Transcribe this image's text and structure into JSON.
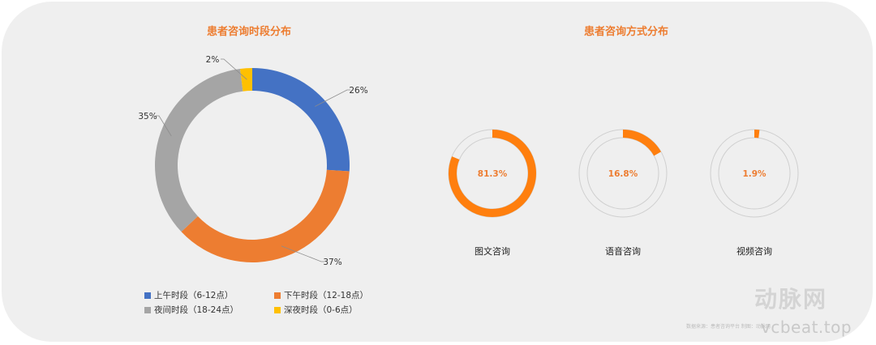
{
  "chart_data": [
    {
      "type": "pie",
      "title": "患者咨询时段分布",
      "unit": "%",
      "slices": [
        {
          "label": "上午时段（6-12点）",
          "value": 26,
          "display": "26%",
          "color": "#4472c4"
        },
        {
          "label": "下午时段（12-18点）",
          "value": 37,
          "display": "37%",
          "color": "#ed7d31"
        },
        {
          "label": "夜间时段（18-24点）",
          "value": 35,
          "display": "35%",
          "color": "#a5a5a5"
        },
        {
          "label": "深夜时段（0-6点）",
          "value": 2,
          "display": "2%",
          "color": "#ffc000"
        }
      ],
      "legend": "bottom"
    },
    {
      "type": "pie",
      "title": "患者咨询方式分布",
      "unit": "%",
      "items": [
        {
          "label": "图文咨询",
          "value": 81.3,
          "display": "81.3%",
          "color": "#ff7f0e"
        },
        {
          "label": "语音咨询",
          "value": 16.8,
          "display": "16.8%",
          "color": "#ff7f0e"
        },
        {
          "label": "视频咨询",
          "value": 1.9,
          "display": "1.9%",
          "color": "#ff7f0e"
        }
      ]
    }
  ],
  "watermark": {
    "brand": "动脉网",
    "site": "vcbeat.top",
    "caption": "数据来源：患者咨询平台  制图：动脉网"
  }
}
